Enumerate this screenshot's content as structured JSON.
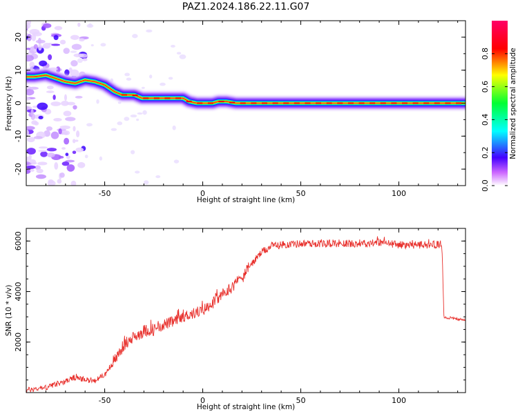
{
  "figure": {
    "title": "PAZ1.2024.186.22.11.G07"
  },
  "chart_data": [
    {
      "type": "heatmap",
      "title": "",
      "xlabel": "Height of straight line (km)",
      "ylabel": "Frequency (Hz)",
      "xlim": [
        -90,
        134
      ],
      "ylim": [
        -25,
        25
      ],
      "x_ticks": [
        -50,
        0,
        50,
        100
      ],
      "y_ticks": [
        -20,
        -10,
        0,
        10,
        20
      ],
      "colorbar": {
        "label": "Normalized spectral amplitude",
        "range": [
          0,
          1
        ],
        "ticks": [
          0.0,
          0.2,
          0.4,
          0.6,
          0.8
        ]
      },
      "ridge": {
        "x": [
          -86,
          -80,
          -75,
          -70,
          -65,
          -60,
          -55,
          -50,
          -45,
          -41,
          -35,
          -31,
          -25,
          -20,
          -15,
          -10,
          -7,
          -3,
          0,
          5,
          8,
          12,
          17,
          25,
          35,
          50,
          70,
          90,
          110,
          134
        ],
        "frequency": [
          8,
          8.5,
          7.5,
          6.5,
          6,
          7,
          6.5,
          5.5,
          3.5,
          2.5,
          2.5,
          1.5,
          1.5,
          1.5,
          1.5,
          1.5,
          0.5,
          0,
          0,
          0,
          0.5,
          0.5,
          0,
          0,
          0,
          0,
          0,
          0,
          0,
          0
        ]
      }
    },
    {
      "type": "line",
      "title": "",
      "xlabel": "Height of straight line (km)",
      "ylabel": "SNR (10 * v/v)",
      "xlim": [
        -90,
        134
      ],
      "ylim": [
        0,
        6500
      ],
      "x_ticks": [
        -50,
        0,
        50,
        100
      ],
      "y_ticks": [
        2000,
        4000,
        6000
      ],
      "series": [
        {
          "color": "#e8302c",
          "x": [
            -90,
            -80,
            -70,
            -65,
            -60,
            -55,
            -50,
            -45,
            -40,
            -35,
            -30,
            -25,
            -20,
            -15,
            -10,
            -5,
            0,
            5,
            10,
            15,
            20,
            25,
            30,
            35,
            40,
            50,
            60,
            70,
            80,
            90,
            100,
            110,
            120,
            122,
            123,
            134
          ],
          "values": [
            100,
            200,
            450,
            600,
            500,
            500,
            700,
            1300,
            1900,
            2200,
            2450,
            2500,
            2700,
            2800,
            3000,
            3150,
            3250,
            3550,
            3850,
            4200,
            4600,
            5100,
            5550,
            5800,
            5850,
            5900,
            5900,
            5900,
            5900,
            5950,
            5850,
            5850,
            5850,
            5800,
            3000,
            2850
          ]
        }
      ]
    }
  ]
}
